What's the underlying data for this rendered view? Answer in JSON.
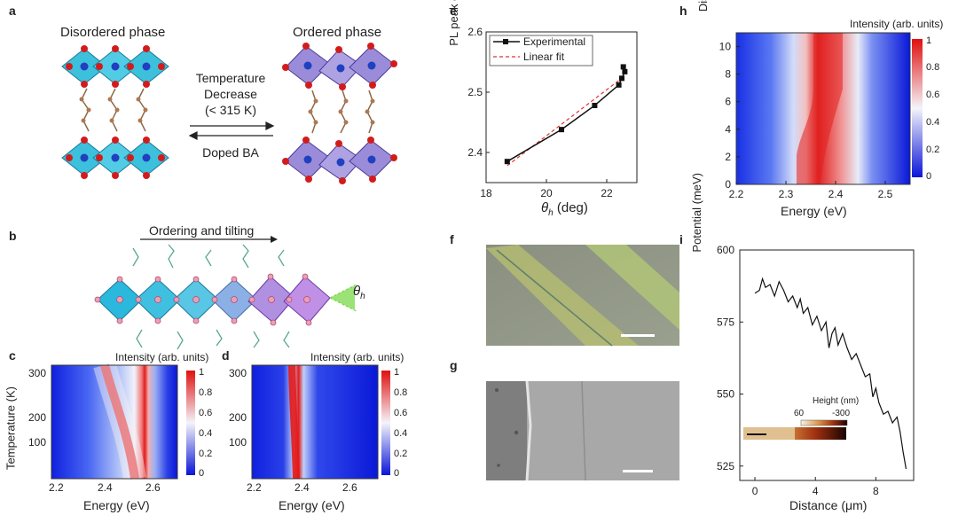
{
  "panels": {
    "a": {
      "label": "a",
      "left_title": "Disordered phase",
      "right_title": "Ordered phase",
      "arrow_top_lines": [
        "Temperature",
        "Decrease",
        "(< 315 K)"
      ],
      "arrow_bottom": "Doped BA"
    },
    "b": {
      "label": "b",
      "arrow_label": "Ordering and tilting",
      "angle_label": "θ",
      "angle_sub": "h"
    },
    "c": {
      "label": "c",
      "intensity_label": "Intensity (arb. units)",
      "xlabel": "Energy (eV)",
      "ylabel": "Temperature (K)",
      "xticks": [
        "2.2",
        "2.4",
        "2.6"
      ],
      "yticks": [
        "100",
        "200",
        "300"
      ],
      "cbar_ticks": [
        "1",
        "0.8",
        "0.6",
        "0.4",
        "0.2",
        "0"
      ]
    },
    "d": {
      "label": "d",
      "intensity_label": "Intensity (arb. units)",
      "xlabel": "Energy (eV)",
      "xticks": [
        "2.2",
        "2.4",
        "2.6"
      ],
      "yticks": [
        "100",
        "200",
        "300"
      ],
      "cbar_ticks": [
        "1",
        "0.8",
        "0.6",
        "0.4",
        "0.2",
        "0"
      ]
    },
    "f": {
      "label": "f"
    },
    "g": {
      "label": "g"
    }
  },
  "chart_data": [
    {
      "id": "e",
      "type": "line",
      "label": "e",
      "xlabel": "θ",
      "xlabel_sub": "h",
      "xlabel_unit": " (deg)",
      "ylabel": "PL peak energy (eV)",
      "xlim": [
        18,
        23
      ],
      "ylim": [
        2.35,
        2.6
      ],
      "xticks": [
        "18",
        "20",
        "22"
      ],
      "yticks": [
        "2.4",
        "2.5",
        "2.6"
      ],
      "series": [
        {
          "name": "Experimental",
          "color": "#111111",
          "x": [
            18.7,
            20.5,
            21.6,
            22.4,
            22.5,
            22.6,
            22.55
          ],
          "y": [
            2.385,
            2.438,
            2.478,
            2.512,
            2.523,
            2.534,
            2.542
          ]
        },
        {
          "name": "Linear fit",
          "color": "#e03030",
          "dashed": true,
          "x": [
            18.7,
            22.6
          ],
          "y": [
            2.378,
            2.527
          ]
        }
      ]
    },
    {
      "id": "h",
      "type": "heatmap",
      "label": "h",
      "intensity_label": "Intensity (arb. units)",
      "xlabel": "Energy (eV)",
      "ylabel": "Distance (μm)",
      "xlim": [
        2.2,
        2.55
      ],
      "ylim": [
        0,
        11
      ],
      "xticks": [
        "2.2",
        "2.3",
        "2.4",
        "2.5"
      ],
      "yticks": [
        "0",
        "2",
        "4",
        "6",
        "8",
        "10"
      ],
      "cbar_ticks": [
        "1",
        "0.8",
        "0.6",
        "0.4",
        "0.2",
        "0"
      ]
    },
    {
      "id": "i",
      "type": "line",
      "label": "i",
      "xlabel": "Distance (μm)",
      "ylabel": "Potential (meV)",
      "xlim": [
        -1,
        10.5
      ],
      "ylim": [
        520,
        600
      ],
      "xticks": [
        "0",
        "4",
        "8"
      ],
      "yticks": [
        "525",
        "550",
        "575",
        "600"
      ],
      "inset_label": "Height (nm)",
      "inset_ticks": [
        "60",
        "-300"
      ],
      "series": [
        {
          "x": [
            0.0,
            0.3,
            0.5,
            0.7,
            1.0,
            1.3,
            1.6,
            1.9,
            2.2,
            2.5,
            2.8,
            3.0,
            3.2,
            3.5,
            3.8,
            4.1,
            4.4,
            4.7,
            4.9,
            5.1,
            5.3,
            5.5,
            5.8,
            6.1,
            6.4,
            6.7,
            7.0,
            7.3,
            7.6,
            7.8,
            8.0,
            8.2,
            8.5,
            8.8,
            9.1,
            9.4,
            9.6,
            9.8,
            10.0
          ],
          "y": [
            585,
            586,
            590,
            587,
            588,
            584,
            589,
            586,
            582,
            584,
            580,
            583,
            578,
            580,
            574,
            577,
            572,
            575,
            566,
            571,
            573,
            567,
            571,
            566,
            562,
            564,
            560,
            556,
            557,
            549,
            552,
            547,
            543,
            544,
            540,
            542,
            537,
            530,
            524
          ]
        }
      ]
    }
  ]
}
